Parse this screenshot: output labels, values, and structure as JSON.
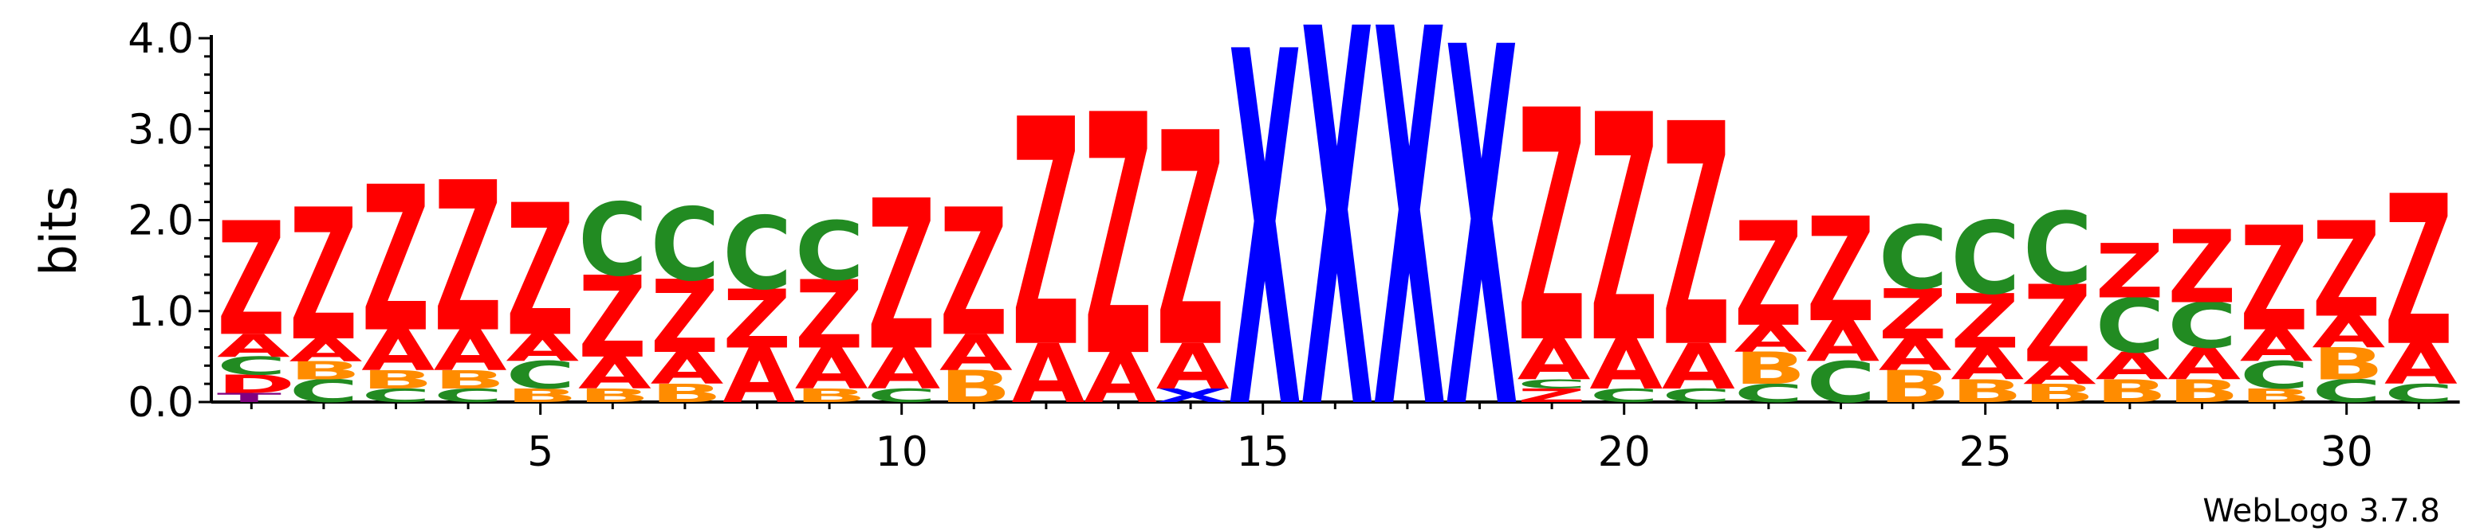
{
  "chart_data": {
    "type": "sequence-logo",
    "ylabel": "bits",
    "ylim": [
      0,
      4.0
    ],
    "y_ticks": [
      "0.0",
      "1.0",
      "2.0",
      "3.0",
      "4.0"
    ],
    "x_ticks": [
      5,
      10,
      15,
      20,
      25,
      30
    ],
    "credit": "WebLogo 3.7.8",
    "colors": {
      "Z": "#ff0000",
      "A": "#ff0000",
      "C": "#228b22",
      "B": "#ff8c00",
      "X": "#0000ff",
      "D": "#ff0000",
      "T": "#800080"
    },
    "positions": [
      {
        "pos": 1,
        "stack": [
          [
            "T",
            0.1
          ],
          [
            "D",
            0.2
          ],
          [
            "C",
            0.2
          ],
          [
            "A",
            0.25
          ],
          [
            "Z",
            1.25
          ]
        ]
      },
      {
        "pos": 2,
        "stack": [
          [
            "C",
            0.25
          ],
          [
            "B",
            0.2
          ],
          [
            "A",
            0.25
          ],
          [
            "Z",
            1.45
          ]
        ]
      },
      {
        "pos": 3,
        "stack": [
          [
            "C",
            0.15
          ],
          [
            "B",
            0.2
          ],
          [
            "A",
            0.45
          ],
          [
            "Z",
            1.6
          ]
        ]
      },
      {
        "pos": 4,
        "stack": [
          [
            "C",
            0.15
          ],
          [
            "B",
            0.2
          ],
          [
            "A",
            0.45
          ],
          [
            "Z",
            1.65
          ]
        ]
      },
      {
        "pos": 5,
        "stack": [
          [
            "B",
            0.15
          ],
          [
            "C",
            0.3
          ],
          [
            "A",
            0.3
          ],
          [
            "Z",
            1.45
          ]
        ]
      },
      {
        "pos": 6,
        "stack": [
          [
            "B",
            0.15
          ],
          [
            "A",
            0.35
          ],
          [
            "Z",
            0.9
          ],
          [
            "C",
            0.8
          ]
        ]
      },
      {
        "pos": 7,
        "stack": [
          [
            "B",
            0.2
          ],
          [
            "A",
            0.35
          ],
          [
            "Z",
            0.8
          ],
          [
            "C",
            0.8
          ]
        ]
      },
      {
        "pos": 8,
        "stack": [
          [
            "A",
            0.6
          ],
          [
            "Z",
            0.65
          ],
          [
            "C",
            0.8
          ]
        ]
      },
      {
        "pos": 9,
        "stack": [
          [
            "B",
            0.15
          ],
          [
            "A",
            0.45
          ],
          [
            "Z",
            0.75
          ],
          [
            "C",
            0.65
          ]
        ]
      },
      {
        "pos": 10,
        "stack": [
          [
            "C",
            0.15
          ],
          [
            "A",
            0.45
          ],
          [
            "Z",
            1.65
          ]
        ]
      },
      {
        "pos": 11,
        "stack": [
          [
            "B",
            0.35
          ],
          [
            "A",
            0.4
          ],
          [
            "Z",
            1.4
          ]
        ]
      },
      {
        "pos": 12,
        "stack": [
          [
            "A",
            0.65
          ],
          [
            "Z",
            2.5
          ]
        ]
      },
      {
        "pos": 13,
        "stack": [
          [
            "A",
            0.55
          ],
          [
            "Z",
            2.65
          ]
        ]
      },
      {
        "pos": 14,
        "stack": [
          [
            "X",
            0.15
          ],
          [
            "A",
            0.5
          ],
          [
            "Z",
            2.35
          ]
        ]
      },
      {
        "pos": 15,
        "stack": [
          [
            "X",
            3.9
          ]
        ]
      },
      {
        "pos": 16,
        "stack": [
          [
            "X",
            4.15
          ]
        ]
      },
      {
        "pos": 17,
        "stack": [
          [
            "X",
            4.15
          ]
        ]
      },
      {
        "pos": 18,
        "stack": [
          [
            "X",
            3.95
          ]
        ]
      },
      {
        "pos": 19,
        "stack": [
          [
            "Z",
            0.15
          ],
          [
            "C",
            0.1
          ],
          [
            "A",
            0.45
          ],
          [
            "Z",
            2.55
          ]
        ]
      },
      {
        "pos": 20,
        "stack": [
          [
            "C",
            0.15
          ],
          [
            "A",
            0.55
          ],
          [
            "Z",
            2.5
          ]
        ]
      },
      {
        "pos": 21,
        "stack": [
          [
            "C",
            0.15
          ],
          [
            "A",
            0.5
          ],
          [
            "Z",
            2.45
          ]
        ]
      },
      {
        "pos": 22,
        "stack": [
          [
            "C",
            0.2
          ],
          [
            "B",
            0.35
          ],
          [
            "A",
            0.3
          ],
          [
            "Z",
            1.15
          ]
        ]
      },
      {
        "pos": 23,
        "stack": [
          [
            "C",
            0.45
          ],
          [
            "A",
            0.45
          ],
          [
            "Z",
            1.15
          ]
        ]
      },
      {
        "pos": 24,
        "stack": [
          [
            "B",
            0.35
          ],
          [
            "A",
            0.35
          ],
          [
            "Z",
            0.55
          ],
          [
            "C",
            0.7
          ]
        ]
      },
      {
        "pos": 25,
        "stack": [
          [
            "B",
            0.25
          ],
          [
            "A",
            0.35
          ],
          [
            "Z",
            0.6
          ],
          [
            "C",
            0.8
          ]
        ]
      },
      {
        "pos": 26,
        "stack": [
          [
            "B",
            0.2
          ],
          [
            "A",
            0.25
          ],
          [
            "Z",
            0.85
          ],
          [
            "C",
            0.8
          ]
        ]
      },
      {
        "pos": 27,
        "stack": [
          [
            "B",
            0.25
          ],
          [
            "A",
            0.3
          ],
          [
            "C",
            0.6
          ],
          [
            "Z",
            0.6
          ]
        ]
      },
      {
        "pos": 28,
        "stack": [
          [
            "B",
            0.25
          ],
          [
            "A",
            0.35
          ],
          [
            "C",
            0.5
          ],
          [
            "Z",
            0.8
          ]
        ]
      },
      {
        "pos": 29,
        "stack": [
          [
            "B",
            0.15
          ],
          [
            "C",
            0.3
          ],
          [
            "A",
            0.35
          ],
          [
            "Z",
            1.15
          ]
        ]
      },
      {
        "pos": 30,
        "stack": [
          [
            "C",
            0.25
          ],
          [
            "B",
            0.35
          ],
          [
            "A",
            0.35
          ],
          [
            "Z",
            1.05
          ]
        ]
      },
      {
        "pos": 31,
        "stack": [
          [
            "C",
            0.2
          ],
          [
            "A",
            0.45
          ],
          [
            "Z",
            1.65
          ]
        ]
      }
    ]
  }
}
